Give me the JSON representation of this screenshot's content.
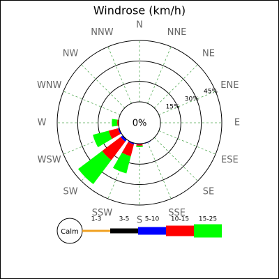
{
  "chart_data": {
    "type": "windrose",
    "title": "Windrose (km/h)",
    "directions": [
      "N",
      "NNE",
      "NE",
      "ENE",
      "E",
      "ESE",
      "SE",
      "SSE",
      "S",
      "SSW",
      "SW",
      "WSW",
      "W",
      "WNW",
      "NW",
      "NNW"
    ],
    "series": [
      {
        "name": "1-3",
        "color": "#f0a020",
        "values": [
          0,
          0,
          0,
          0,
          0,
          0,
          0,
          0,
          0,
          0,
          0,
          0,
          0,
          0,
          0,
          0
        ]
      },
      {
        "name": "3-5",
        "color": "#000000",
        "values": [
          0,
          0,
          0,
          0,
          0,
          0,
          0,
          0,
          0,
          0,
          0.5,
          0,
          0,
          0,
          0,
          0
        ]
      },
      {
        "name": "5-10",
        "color": "#0000ff",
        "values": [
          0,
          0,
          0,
          0,
          0,
          0,
          0,
          0.5,
          0.5,
          1,
          1.5,
          1,
          0,
          0,
          0,
          0
        ]
      },
      {
        "name": "10-15",
        "color": "#ff0000",
        "values": [
          0,
          0,
          0,
          0,
          0,
          0,
          0,
          0,
          1,
          9,
          17,
          7,
          1,
          0,
          0,
          0
        ]
      },
      {
        "name": "15-25",
        "color": "#00ff00",
        "values": [
          0,
          0,
          0,
          0,
          0,
          0,
          0,
          0,
          1,
          13,
          22,
          12,
          4,
          0,
          0,
          0
        ]
      }
    ],
    "calm": {
      "label": "Calm",
      "value": 0,
      "value_label": "0%"
    },
    "rlim": [
      0,
      45
    ],
    "rticks": [
      {
        "value": 15,
        "label": "15%"
      },
      {
        "value": 30,
        "label": "30%"
      },
      {
        "value": 45,
        "label": "45%"
      }
    ],
    "grid": true
  }
}
